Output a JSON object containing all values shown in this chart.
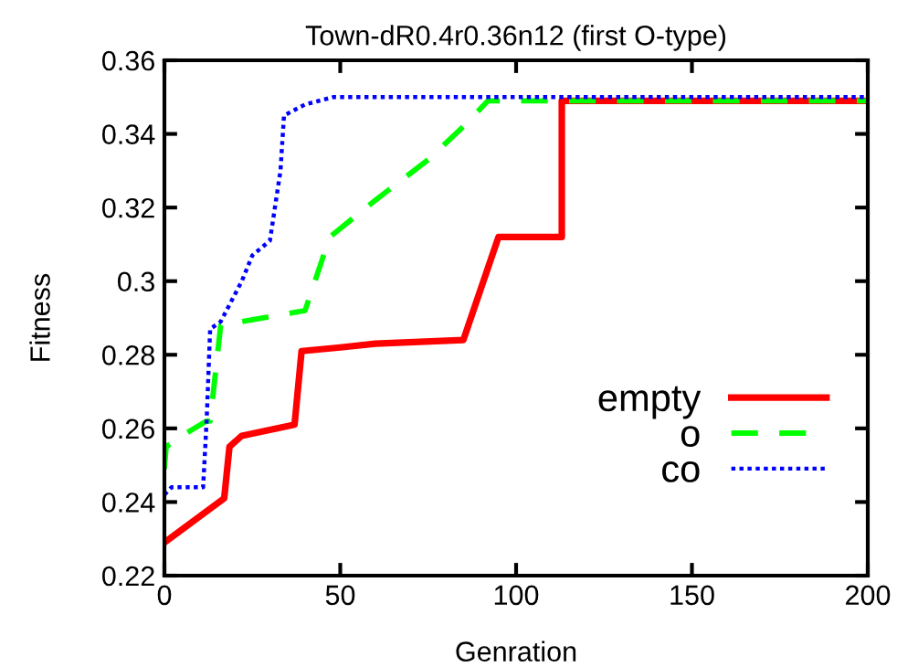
{
  "chart_data": {
    "type": "line",
    "title": "Town-dR0.4r0.36n12 (first O-type)",
    "xlabel": "Genration",
    "ylabel": "Fitness",
    "xlim": [
      0,
      200
    ],
    "xticks": [
      0,
      50,
      100,
      150,
      200
    ],
    "ylim": [
      0.22,
      0.36
    ],
    "yticks": [
      0.22,
      0.24,
      0.26,
      0.28,
      0.3,
      0.32,
      0.34,
      0.36
    ],
    "grid": false,
    "legend": "bottom right",
    "marker": "none",
    "series": [
      {
        "name": "empty",
        "color": "#ff0000",
        "line_style": "solid",
        "x": [
          0,
          17,
          18.5,
          22,
          37,
          39,
          50,
          60,
          85,
          95,
          113,
          113,
          200
        ],
        "values": [
          0.229,
          0.241,
          0.255,
          0.258,
          0.261,
          0.281,
          0.282,
          0.283,
          0.284,
          0.312,
          0.312,
          0.349,
          0.349
        ]
      },
      {
        "name": "o",
        "color": "#00ff00",
        "line_style": "dashed",
        "x": [
          0,
          0.5,
          5,
          12,
          13,
          16,
          22,
          40,
          47,
          60,
          75,
          85,
          92,
          200
        ],
        "values": [
          0.249,
          0.255,
          0.258,
          0.262,
          0.262,
          0.288,
          0.289,
          0.292,
          0.312,
          0.322,
          0.333,
          0.342,
          0.349,
          0.349
        ]
      },
      {
        "name": "co",
        "color": "#0000ff",
        "line_style": "dotted",
        "x": [
          0,
          2,
          11,
          12,
          13,
          16,
          22,
          25,
          30,
          33,
          34,
          40,
          48,
          200
        ],
        "values": [
          0.242,
          0.244,
          0.244,
          0.262,
          0.287,
          0.289,
          0.3,
          0.307,
          0.311,
          0.33,
          0.345,
          0.348,
          0.35,
          0.35
        ]
      }
    ]
  }
}
